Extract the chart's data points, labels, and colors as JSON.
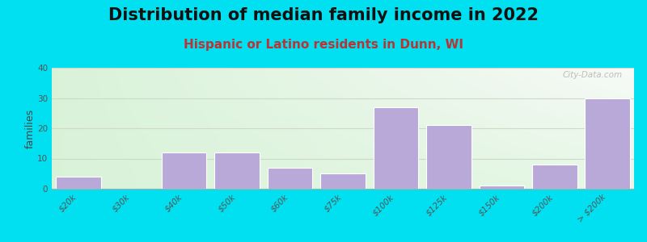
{
  "title": "Distribution of median family income in 2022",
  "subtitle": "Hispanic or Latino residents in Dunn, WI",
  "ylabel": "families",
  "categories": [
    "$20k",
    "$30k",
    "$40k",
    "$50k",
    "$60k",
    "$75k",
    "$100k",
    "$125k",
    "$150k",
    "$200k",
    "> $200k"
  ],
  "values": [
    4,
    0,
    12,
    12,
    7,
    5,
    27,
    21,
    1,
    8,
    30
  ],
  "bar_color": "#b8a9d9",
  "bar_edge_color": "#ffffff",
  "ylim": [
    0,
    40
  ],
  "yticks": [
    0,
    10,
    20,
    30,
    40
  ],
  "background_outer": "#00e0f0",
  "grid_color": "#d0d8c8",
  "title_fontsize": 15,
  "subtitle_fontsize": 11,
  "subtitle_color": "#bb3333",
  "ylabel_fontsize": 9,
  "tick_fontsize": 7.5,
  "watermark": "City-Data.com"
}
